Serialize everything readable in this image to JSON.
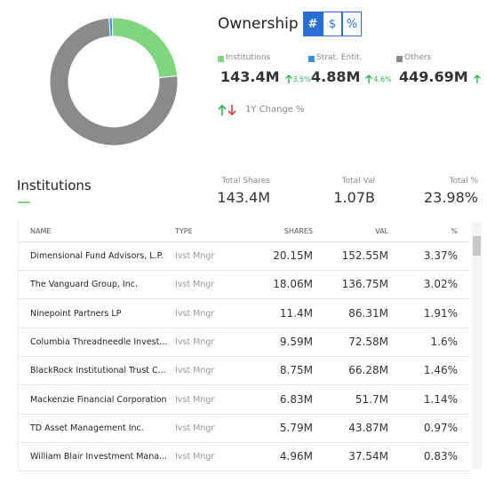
{
  "chart_data": {
    "type": "donut",
    "title": "Ownership",
    "toggles": [
      "#",
      "$",
      "%"
    ],
    "categories": [
      "Institutions",
      "Strat. Entit.",
      "Others"
    ],
    "values": [
      143.4,
      4.88,
      449.69
    ],
    "value_labels": [
      "143.4M",
      "4.88M",
      "449.69M"
    ],
    "changes": [
      "3.5%",
      "4.6%",
      null
    ],
    "colors": [
      "#7fd67f",
      "#3a8ee6",
      "#8a8a8a"
    ],
    "change_legend": "1Y Change %"
  },
  "institutions": {
    "title": "Institutions",
    "summary": [
      {
        "label": "Total Shares",
        "value": "143.4M"
      },
      {
        "label": "Total Val",
        "value": "1.07B"
      },
      {
        "label": "Total %",
        "value": "23.98%"
      }
    ],
    "table": {
      "headers": [
        "NAME",
        "TYPE",
        "SHARES",
        "VAL",
        "%"
      ],
      "rows": [
        [
          "Dimensional Fund Advisors, L.P.",
          "Ivst Mngr",
          "20.15M",
          "152.55M",
          "3.37%"
        ],
        [
          "The Vanguard Group, Inc.",
          "Ivst Mngr",
          "18.06M",
          "136.75M",
          "3.02%"
        ],
        [
          "Ninepoint Partners LP",
          "Ivst Mngr",
          "11.4M",
          "86.31M",
          "1.91%"
        ],
        [
          "Columbia Threadneedle Invest...",
          "Ivst Mngr",
          "9.59M",
          "72.58M",
          "1.6%"
        ],
        [
          "BlackRock Institutional Trust C...",
          "Ivst Mngr",
          "8.75M",
          "66.28M",
          "1.46%"
        ],
        [
          "Mackenzie Financial Corporation",
          "Ivst Mngr",
          "6.83M",
          "51.7M",
          "1.14%"
        ],
        [
          "TD Asset Management Inc.",
          "Ivst Mngr",
          "5.79M",
          "43.87M",
          "0.97%"
        ],
        [
          "William Blair Investment Mana...",
          "Ivst Mngr",
          "4.96M",
          "37.54M",
          "0.83%"
        ]
      ]
    }
  }
}
